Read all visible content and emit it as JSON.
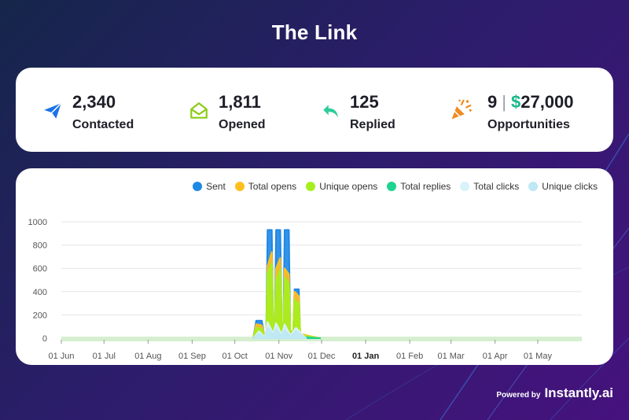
{
  "page": {
    "title": "The Link"
  },
  "stats": [
    {
      "value": "2,340",
      "label": "Contacted",
      "icon": "paper-plane-icon",
      "color": "#1a73e8"
    },
    {
      "value": "1,811",
      "label": "Opened",
      "icon": "open-envelope-icon",
      "color": "#8ccc14"
    },
    {
      "value": "125",
      "label": "Replied",
      "icon": "reply-arrow-icon",
      "color": "#2ecc9a"
    },
    {
      "value": "9",
      "separator": "|",
      "money_symbol": "$",
      "money_value": "27,000",
      "label": "Opportunities",
      "icon": "party-popper-icon",
      "color": "#f08c22"
    }
  ],
  "legend": [
    {
      "name": "Sent",
      "color": "#1e88e5"
    },
    {
      "name": "Total opens",
      "color": "#ffbf1f"
    },
    {
      "name": "Unique opens",
      "color": "#a6ef1e"
    },
    {
      "name": "Total replies",
      "color": "#1ed48f"
    },
    {
      "name": "Total clicks",
      "color": "#d9f1fb"
    },
    {
      "name": "Unique clicks",
      "color": "#bde8f4"
    }
  ],
  "chart_data": {
    "type": "area",
    "title": "",
    "xlabel": "",
    "ylabel": "",
    "ylim": [
      0,
      1000
    ],
    "y_ticks": [
      0,
      200,
      400,
      600,
      800,
      1000
    ],
    "x_range": [
      "2023-06-01",
      "2024-06-01"
    ],
    "x_ticks": [
      {
        "label": "01 Jun",
        "date": "2023-06-01",
        "bold": false
      },
      {
        "label": "01 Jul",
        "date": "2023-07-01",
        "bold": false
      },
      {
        "label": "01 Aug",
        "date": "2023-08-01",
        "bold": false
      },
      {
        "label": "01 Sep",
        "date": "2023-09-01",
        "bold": false
      },
      {
        "label": "01 Oct",
        "date": "2023-10-01",
        "bold": false
      },
      {
        "label": "01 Nov",
        "date": "2023-11-01",
        "bold": false
      },
      {
        "label": "01 Dec",
        "date": "2023-12-01",
        "bold": false
      },
      {
        "label": "01 Jan",
        "date": "2024-01-01",
        "bold": true
      },
      {
        "label": "01 Feb",
        "date": "2024-02-01",
        "bold": false
      },
      {
        "label": "01 Mar",
        "date": "2024-03-01",
        "bold": false
      },
      {
        "label": "01 Apr",
        "date": "2024-04-01",
        "bold": false
      },
      {
        "label": "01 May",
        "date": "2024-05-01",
        "bold": false
      }
    ],
    "grid": true,
    "legend_position": "top-right",
    "series": [
      {
        "name": "Sent",
        "color": "#1e88e5",
        "points": [
          [
            "2023-10-14",
            0
          ],
          [
            "2023-10-16",
            150
          ],
          [
            "2023-10-20",
            150
          ],
          [
            "2023-10-22",
            0
          ],
          [
            "2023-10-23",
            0
          ],
          [
            "2023-10-24",
            930
          ],
          [
            "2023-10-27",
            930
          ],
          [
            "2023-10-28",
            0
          ],
          [
            "2023-10-29",
            0
          ],
          [
            "2023-10-30",
            930
          ],
          [
            "2023-11-02",
            930
          ],
          [
            "2023-11-03",
            0
          ],
          [
            "2023-11-04",
            0
          ],
          [
            "2023-11-05",
            930
          ],
          [
            "2023-11-08",
            930
          ],
          [
            "2023-11-09",
            0
          ],
          [
            "2023-11-11",
            0
          ],
          [
            "2023-11-12",
            420
          ],
          [
            "2023-11-15",
            420
          ],
          [
            "2023-11-16",
            0
          ]
        ]
      },
      {
        "name": "Total opens",
        "color": "#ffbf1f",
        "points": [
          [
            "2023-10-14",
            0
          ],
          [
            "2023-10-16",
            120
          ],
          [
            "2023-10-20",
            110
          ],
          [
            "2023-10-22",
            20
          ],
          [
            "2023-10-23",
            40
          ],
          [
            "2023-10-24",
            620
          ],
          [
            "2023-10-27",
            740
          ],
          [
            "2023-10-28",
            60
          ],
          [
            "2023-10-29",
            70
          ],
          [
            "2023-10-30",
            600
          ],
          [
            "2023-11-02",
            690
          ],
          [
            "2023-11-03",
            60
          ],
          [
            "2023-11-04",
            50
          ],
          [
            "2023-11-05",
            600
          ],
          [
            "2023-11-08",
            550
          ],
          [
            "2023-11-09",
            60
          ],
          [
            "2023-11-11",
            60
          ],
          [
            "2023-11-12",
            400
          ],
          [
            "2023-11-15",
            360
          ],
          [
            "2023-11-16",
            40
          ],
          [
            "2023-11-22",
            20
          ],
          [
            "2023-11-30",
            0
          ]
        ]
      },
      {
        "name": "Unique opens",
        "color": "#a6ef1e",
        "points": [
          [
            "2023-10-14",
            0
          ],
          [
            "2023-10-16",
            90
          ],
          [
            "2023-10-20",
            80
          ],
          [
            "2023-10-22",
            15
          ],
          [
            "2023-10-23",
            30
          ],
          [
            "2023-10-24",
            560
          ],
          [
            "2023-10-27",
            640
          ],
          [
            "2023-10-28",
            50
          ],
          [
            "2023-10-29",
            55
          ],
          [
            "2023-10-30",
            500
          ],
          [
            "2023-11-02",
            590
          ],
          [
            "2023-11-03",
            50
          ],
          [
            "2023-11-04",
            40
          ],
          [
            "2023-11-05",
            520
          ],
          [
            "2023-11-08",
            470
          ],
          [
            "2023-11-09",
            50
          ],
          [
            "2023-11-11",
            50
          ],
          [
            "2023-11-12",
            330
          ],
          [
            "2023-11-15",
            300
          ],
          [
            "2023-11-16",
            30
          ],
          [
            "2023-11-22",
            15
          ],
          [
            "2023-11-30",
            0
          ]
        ]
      },
      {
        "name": "Total replies",
        "color": "#1ed48f",
        "points": [
          [
            "2023-10-14",
            0
          ],
          [
            "2023-10-24",
            20
          ],
          [
            "2023-10-30",
            25
          ],
          [
            "2023-11-05",
            20
          ],
          [
            "2023-11-12",
            15
          ],
          [
            "2023-11-30",
            0
          ]
        ]
      },
      {
        "name": "Total clicks",
        "color": "#d9f1fb",
        "points": [
          [
            "2023-10-14",
            0
          ],
          [
            "2023-10-18",
            60
          ],
          [
            "2023-10-22",
            10
          ],
          [
            "2023-10-24",
            140
          ],
          [
            "2023-10-28",
            40
          ],
          [
            "2023-10-30",
            130
          ],
          [
            "2023-11-03",
            30
          ],
          [
            "2023-11-05",
            120
          ],
          [
            "2023-11-09",
            25
          ],
          [
            "2023-11-13",
            90
          ],
          [
            "2023-11-20",
            0
          ]
        ]
      },
      {
        "name": "Unique clicks",
        "color": "#bde8f4",
        "points": [
          [
            "2023-10-14",
            0
          ],
          [
            "2023-10-18",
            40
          ],
          [
            "2023-10-22",
            5
          ],
          [
            "2023-10-24",
            90
          ],
          [
            "2023-10-28",
            30
          ],
          [
            "2023-10-30",
            80
          ],
          [
            "2023-11-03",
            20
          ],
          [
            "2023-11-05",
            70
          ],
          [
            "2023-11-09",
            15
          ],
          [
            "2023-11-13",
            60
          ],
          [
            "2023-11-20",
            0
          ]
        ]
      }
    ]
  },
  "footer": {
    "powered_by": "Powered by",
    "brand": "Instantly.ai"
  }
}
